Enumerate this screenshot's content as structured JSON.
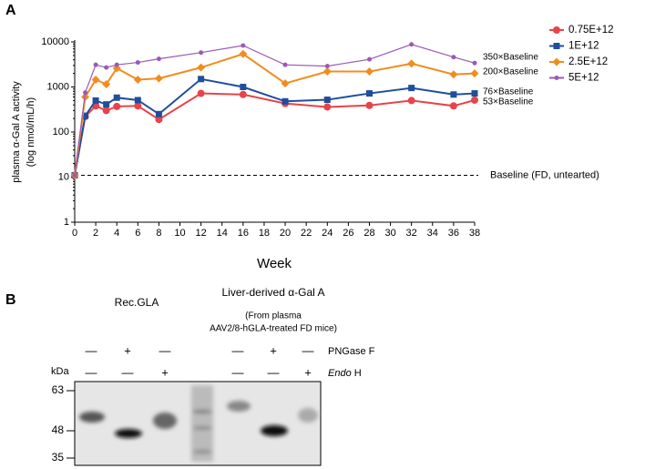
{
  "panels": {
    "a": "A",
    "b": "B"
  },
  "chart_data": {
    "type": "line",
    "log_scale": true,
    "legend": "right",
    "ylabel": [
      "plasma α-Gal A activity",
      "(log nmol/mL/h)"
    ],
    "xlabel": "Week",
    "x": [
      0,
      1,
      2,
      3,
      4,
      6,
      8,
      12,
      16,
      20,
      24,
      28,
      32,
      36,
      38
    ],
    "xlim": [
      0,
      38
    ],
    "xticks": [
      0,
      2,
      4,
      6,
      8,
      10,
      12,
      14,
      16,
      18,
      20,
      22,
      24,
      26,
      28,
      30,
      32,
      34,
      36,
      38
    ],
    "ylim": [
      1,
      10000
    ],
    "yticks": [
      1,
      10,
      100,
      1000,
      10000
    ],
    "series": [
      {
        "name": "0.75E+12",
        "color": "#e8434a",
        "marker": "circle",
        "values": [
          11,
          220,
          380,
          300,
          370,
          380,
          190,
          720,
          680,
          430,
          360,
          390,
          500,
          380,
          510
        ]
      },
      {
        "name": "1E+12",
        "color": "#1f4e9c",
        "marker": "square",
        "values": [
          11,
          230,
          500,
          410,
          580,
          510,
          250,
          1500,
          1000,
          480,
          520,
          720,
          950,
          680,
          720
        ]
      },
      {
        "name": "2.5E+12",
        "color": "#f28c1e",
        "marker": "diamond",
        "values": [
          11,
          600,
          1450,
          1150,
          2600,
          1450,
          1550,
          2700,
          5400,
          1200,
          2200,
          2200,
          3300,
          1900,
          2000
        ]
      },
      {
        "name": "5E+12",
        "color": "#9b59b6",
        "marker": "dot",
        "values": [
          11,
          750,
          3100,
          2700,
          3100,
          3500,
          4200,
          5800,
          8300,
          3100,
          2900,
          4100,
          8800,
          4600,
          3400
        ]
      }
    ],
    "annotations": [
      "350×Baseline",
      "200×Baseline",
      "76×Baseline",
      "53×Baseline"
    ],
    "baseline": {
      "value": 11,
      "label": "Baseline (FD, untearted)"
    }
  },
  "blot": {
    "groups": [
      "Rec.GLA",
      "Liver-derived α-Gal A"
    ],
    "note": [
      "(From plasma",
      "AAV2/8-hGLA-treated FD mice)"
    ],
    "treatments": [
      {
        "name": "PNGase F",
        "signs": [
          "—",
          "+",
          "—",
          "—",
          "+",
          "—"
        ]
      },
      {
        "name_italic": "Endo",
        "name_rest": "H",
        "signs": [
          "—",
          "—",
          "+",
          "—",
          "—",
          "+"
        ]
      }
    ],
    "unit": "kDa",
    "markers": [
      63,
      48,
      35
    ]
  }
}
